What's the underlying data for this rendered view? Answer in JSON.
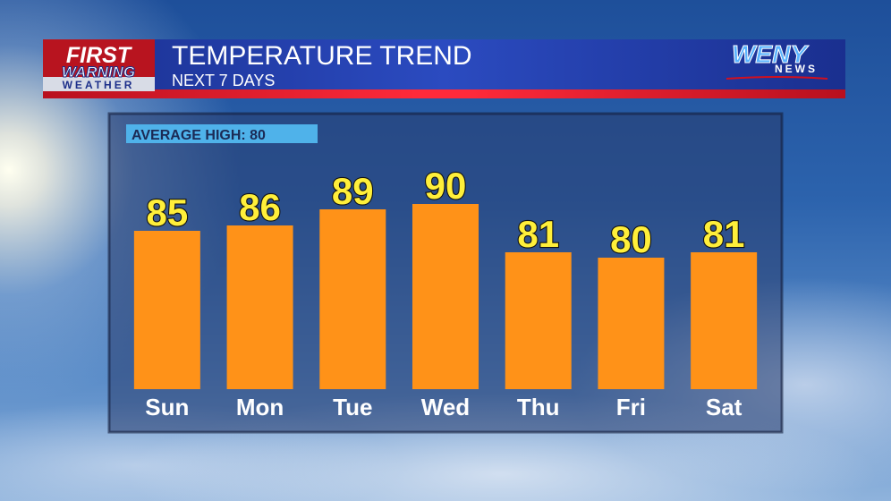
{
  "branding": {
    "left": [
      "FIRST",
      "WARNING",
      "WEATHER"
    ],
    "right": [
      "WENY",
      "NEWS"
    ]
  },
  "chart_data": {
    "type": "bar",
    "title": "TEMPERATURE TREND",
    "subtitle": "NEXT 7 DAYS",
    "annotation": "AVERAGE HIGH: 80",
    "categories": [
      "Sun",
      "Mon",
      "Tue",
      "Wed",
      "Thu",
      "Fri",
      "Sat"
    ],
    "values": [
      85,
      86,
      89,
      90,
      81,
      80,
      81
    ],
    "color": "#ff9218",
    "ylim": [
      55.5,
      105
    ]
  }
}
